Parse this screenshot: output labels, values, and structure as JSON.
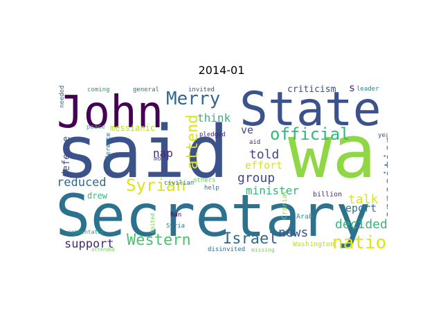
{
  "chart_data": {
    "type": "wordcloud",
    "title": "2014-01",
    "words": [
      {
        "text": "said",
        "color": "#3b528b"
      },
      {
        "text": "wa",
        "color": "#8fd744"
      },
      {
        "text": "Secretary",
        "color": "#2c728e"
      },
      {
        "text": "State",
        "color": "#3b528b"
      },
      {
        "text": "John",
        "color": "#440154"
      },
      {
        "text": "Merry",
        "color": "#31688e"
      },
      {
        "text": "official",
        "color": "#35b779"
      },
      {
        "text": "nation",
        "color": "#dce319"
      },
      {
        "text": "Western",
        "color": "#4ac16d"
      },
      {
        "text": "Syrian",
        "color": "#dce319"
      },
      {
        "text": "Israel",
        "color": "#31688e"
      },
      {
        "text": "attend",
        "color": "#dce319"
      },
      {
        "text": "opposition",
        "color": "#2c728e"
      },
      {
        "text": "decided",
        "color": "#35b779"
      },
      {
        "text": "support",
        "color": "#482878"
      },
      {
        "text": "reduced",
        "color": "#31688e"
      },
      {
        "text": "group",
        "color": "#3e4989"
      },
      {
        "text": "told",
        "color": "#3e4989"
      },
      {
        "text": "news",
        "color": "#3b528b"
      },
      {
        "text": "talk",
        "color": "#dce319"
      },
      {
        "text": "think",
        "color": "#35b779"
      },
      {
        "text": "minister",
        "color": "#35b779"
      },
      {
        "text": "report",
        "color": "#2c728e"
      },
      {
        "text": "effort",
        "color": "#dce319"
      },
      {
        "text": "defense",
        "color": "#3e4989"
      },
      {
        "text": "nap",
        "color": "#482878"
      },
      {
        "text": "ve",
        "color": "#3e4989"
      },
      {
        "text": "s",
        "color": "#482878"
      },
      {
        "text": "criticism",
        "color": "#3e4989"
      },
      {
        "text": "messianic",
        "color": "#b8de29"
      },
      {
        "text": "drew",
        "color": "#35b779"
      },
      {
        "text": "Washington",
        "color": "#b8de29"
      },
      {
        "text": "Cranial",
        "color": "#8fd744"
      },
      {
        "text": "Arab",
        "color": "#1f9e89"
      },
      {
        "text": "billion",
        "color": "#482878"
      },
      {
        "text": "year",
        "color": "#3b528b"
      },
      {
        "text": "leader",
        "color": "#26828e"
      },
      {
        "text": "pledged",
        "color": "#482878"
      },
      {
        "text": "invited",
        "color": "#3b528b"
      },
      {
        "text": "general",
        "color": "#2c728e"
      },
      {
        "text": "coming",
        "color": "#1f9e89"
      },
      {
        "text": "needed",
        "color": "#2c728e"
      },
      {
        "text": "peace",
        "color": "#35b779"
      },
      {
        "text": "conference",
        "color": "#2c728e"
      },
      {
        "text": "moon",
        "color": "#3e4989"
      },
      {
        "text": "aid",
        "color": "#482878"
      },
      {
        "text": "civilian",
        "color": "#31688e"
      },
      {
        "text": "others",
        "color": "#6ece58"
      },
      {
        "text": "help",
        "color": "#2c728e"
      },
      {
        "text": "Ran",
        "color": "#440154"
      },
      {
        "text": "Syria",
        "color": "#2c728e"
      },
      {
        "text": "United",
        "color": "#6ece58"
      },
      {
        "text": "disinvited",
        "color": "#31688e"
      },
      {
        "text": "missing",
        "color": "#6ece58"
      },
      {
        "text": "commentator",
        "color": "#1f9e89"
      },
      {
        "text": "attended",
        "color": "#6ece58"
      }
    ]
  }
}
